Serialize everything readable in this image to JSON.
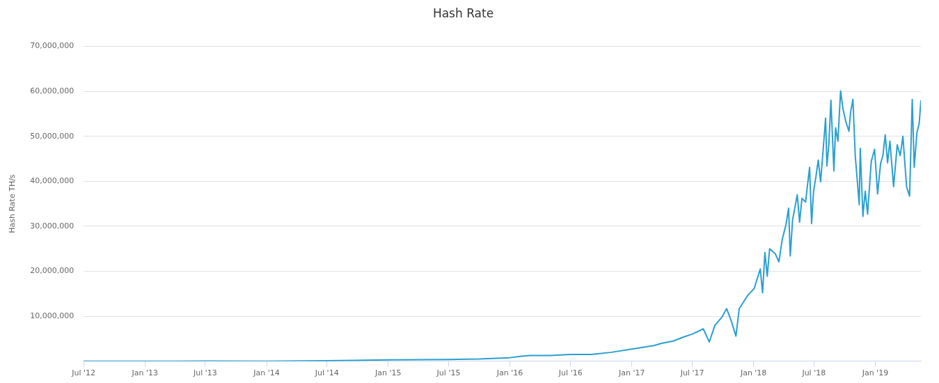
{
  "chart_data": {
    "type": "line",
    "title": "Hash Rate",
    "ylabel": "Hash Rate TH/s",
    "grid": "y",
    "legend": false,
    "marker": "none",
    "line_style": "solid",
    "xlim": [
      "2012-07-01",
      "2019-05-18"
    ],
    "xticks": [
      {
        "value": "2012-07",
        "label": "Jul '12"
      },
      {
        "value": "2013-01",
        "label": "Jan '13"
      },
      {
        "value": "2013-07",
        "label": "Jul '13"
      },
      {
        "value": "2014-01",
        "label": "Jan '14"
      },
      {
        "value": "2014-07",
        "label": "Jul '14"
      },
      {
        "value": "2015-01",
        "label": "Jan '15"
      },
      {
        "value": "2015-07",
        "label": "Jul '15"
      },
      {
        "value": "2016-01",
        "label": "Jan '16"
      },
      {
        "value": "2016-07",
        "label": "Jul '16"
      },
      {
        "value": "2017-01",
        "label": "Jan '17"
      },
      {
        "value": "2017-07",
        "label": "Jul '17"
      },
      {
        "value": "2018-01",
        "label": "Jan '18"
      },
      {
        "value": "2018-07",
        "label": "Jul '18"
      },
      {
        "value": "2019-01",
        "label": "Jan '19"
      }
    ],
    "ylim": [
      0,
      70000000
    ],
    "yticks": [
      {
        "value": 0,
        "label": null
      },
      {
        "value": 10000000,
        "label": "10,000,000"
      },
      {
        "value": 20000000,
        "label": "20,000,000"
      },
      {
        "value": 30000000,
        "label": "30,000,000"
      },
      {
        "value": 40000000,
        "label": "40,000,000"
      },
      {
        "value": 50000000,
        "label": "50,000,000"
      },
      {
        "value": 60000000,
        "label": "60,000,000"
      },
      {
        "value": 70000000,
        "label": "70,000,000"
      }
    ],
    "x": [
      "2012-07-01",
      "2013-01-01",
      "2013-07-01",
      "2014-01-01",
      "2014-07-01",
      "2015-01-01",
      "2015-07-01",
      "2015-10-01",
      "2016-01-01",
      "2016-02-01",
      "2016-03-01",
      "2016-05-01",
      "2016-07-01",
      "2016-09-01",
      "2016-11-01",
      "2017-01-01",
      "2017-03-08",
      "2017-03-31",
      "2017-05-05",
      "2017-06-02",
      "2017-07-03",
      "2017-08-03",
      "2017-08-21",
      "2017-09-07",
      "2017-09-28",
      "2017-10-12",
      "2017-10-26",
      "2017-11-09",
      "2017-11-19",
      "2017-12-14",
      "2018-01-03",
      "2018-01-21",
      "2018-01-28",
      "2018-02-04",
      "2018-02-11",
      "2018-02-18",
      "2018-03-07",
      "2018-03-18",
      "2018-03-28",
      "2018-04-08",
      "2018-04-16",
      "2018-04-21",
      "2018-04-28",
      "2018-05-12",
      "2018-05-19",
      "2018-05-26",
      "2018-06-06",
      "2018-06-18",
      "2018-06-24",
      "2018-06-30",
      "2018-07-07",
      "2018-07-14",
      "2018-07-21",
      "2018-07-28",
      "2018-08-05",
      "2018-08-09",
      "2018-08-15",
      "2018-08-21",
      "2018-08-30",
      "2018-09-04",
      "2018-09-11",
      "2018-09-19",
      "2018-09-26",
      "2018-10-05",
      "2018-10-14",
      "2018-10-19",
      "2018-10-26",
      "2018-11-02",
      "2018-11-14",
      "2018-11-17",
      "2018-11-25",
      "2018-12-02",
      "2018-12-09",
      "2018-12-20",
      "2018-12-30",
      "2019-01-08",
      "2019-01-17",
      "2019-01-24",
      "2019-01-31",
      "2019-02-07",
      "2019-02-14",
      "2019-02-25",
      "2019-03-08",
      "2019-03-17",
      "2019-03-25",
      "2019-04-05",
      "2019-04-14",
      "2019-04-22",
      "2019-04-28",
      "2019-05-06",
      "2019-05-13",
      "2019-05-18"
    ],
    "series": [
      {
        "color": "#2a9fd0",
        "values": [
          10000,
          20000,
          30000,
          20000,
          120000,
          300000,
          400000,
          500000,
          800000,
          1100000,
          1300000,
          1300000,
          1500000,
          1500000,
          2000000,
          2700000,
          3500000,
          4000000,
          4500000,
          5300000,
          6100000,
          7200000,
          4300000,
          8000000,
          9800000,
          11700000,
          9000000,
          5600000,
          11700000,
          14600000,
          16200000,
          20500000,
          15200000,
          24200000,
          18900000,
          25000000,
          23900000,
          22100000,
          27100000,
          30300000,
          34000000,
          23400000,
          31400000,
          37000000,
          30900000,
          36200000,
          35400000,
          43100000,
          30600000,
          37800000,
          41000000,
          44700000,
          39900000,
          46300000,
          54000000,
          43400000,
          48400000,
          58000000,
          42300000,
          51900000,
          48900000,
          60100000,
          56100000,
          53200000,
          51100000,
          55300000,
          58200000,
          45700000,
          34800000,
          47300000,
          32200000,
          37800000,
          32700000,
          44400000,
          47100000,
          37200000,
          43900000,
          45700000,
          50300000,
          44100000,
          48900000,
          38800000,
          48100000,
          45700000,
          50000000,
          38800000,
          36700000,
          58200000,
          43100000,
          50800000,
          52900000,
          58000000
        ]
      }
    ]
  }
}
